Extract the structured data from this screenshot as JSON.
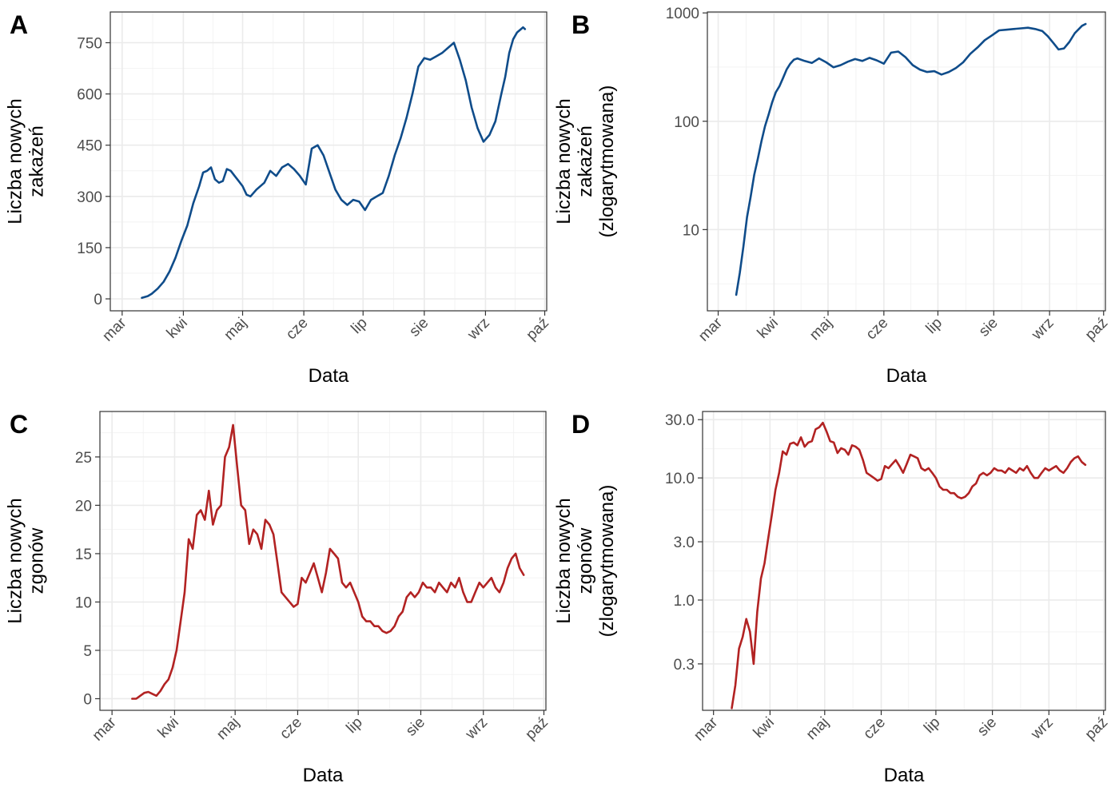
{
  "chart_data": [
    {
      "panel": "A",
      "type": "line",
      "xlabel": "Data",
      "ylabel_lines": [
        "Liczba nowych",
        "zakażeń"
      ],
      "x_tick_labels": [
        "mar",
        "kwi",
        "maj",
        "cze",
        "lip",
        "sie",
        "wrz",
        "paź"
      ],
      "xlim": [
        -6,
        215
      ],
      "ylim": [
        -35,
        840
      ],
      "y_scale": "linear",
      "y_ticks": [
        0,
        150,
        300,
        450,
        600,
        750
      ],
      "y_tick_labels": [
        "0",
        "150",
        "300",
        "450",
        "600",
        "750"
      ],
      "y_minor": [
        75,
        225,
        375,
        525,
        675
      ],
      "color": "#0f4c8a",
      "series": [
        {
          "x": [
            10,
            13,
            15,
            18,
            21,
            24,
            27,
            30,
            33,
            36,
            39,
            41,
            43,
            45,
            47,
            49,
            51,
            53,
            55,
            57,
            59,
            61,
            63,
            65,
            68,
            72,
            75,
            78,
            81,
            84,
            87,
            90,
            93,
            96,
            99,
            102,
            105,
            108,
            111,
            114,
            117,
            120,
            123,
            126,
            129,
            132,
            135,
            138,
            141,
            144,
            147,
            150,
            153,
            156,
            159,
            162,
            165,
            168,
            171,
            174,
            177,
            180,
            183,
            186,
            189,
            192,
            194,
            196,
            198,
            200,
            202,
            203,
            204
          ],
          "y": [
            3,
            8,
            15,
            30,
            50,
            80,
            120,
            170,
            215,
            280,
            330,
            370,
            375,
            385,
            350,
            340,
            345,
            380,
            375,
            360,
            345,
            330,
            305,
            300,
            320,
            340,
            375,
            360,
            385,
            395,
            380,
            360,
            335,
            440,
            450,
            420,
            370,
            320,
            290,
            275,
            290,
            285,
            260,
            290,
            300,
            310,
            360,
            420,
            470,
            530,
            600,
            680,
            705,
            700,
            710,
            720,
            735,
            750,
            700,
            640,
            560,
            500,
            460,
            480,
            520,
            600,
            650,
            720,
            760,
            780,
            790,
            795,
            790
          ]
        }
      ]
    },
    {
      "panel": "B",
      "type": "line",
      "xlabel": "Data",
      "ylabel_lines": [
        "Liczba nowych",
        "zakażeń",
        "(zlogarytmowana)"
      ],
      "x_tick_labels": [
        "mar",
        "kwi",
        "maj",
        "cze",
        "lip",
        "sie",
        "wrz",
        "paź"
      ],
      "xlim": [
        -6,
        215
      ],
      "ylim": [
        1.78,
        1020
      ],
      "y_scale": "log10",
      "y_ticks": [
        10,
        100,
        1000
      ],
      "y_tick_labels": [
        "10",
        "100",
        "1000"
      ],
      "y_minor": [
        3.1623,
        31.623,
        316.23
      ],
      "color": "#0f4c8a",
      "series": [
        {
          "x": [
            10,
            12,
            14,
            16,
            18,
            20,
            22,
            24,
            26,
            28,
            30,
            32,
            34,
            36,
            38,
            40,
            42,
            44,
            48,
            52,
            56,
            60,
            64,
            68,
            72,
            76,
            80,
            84,
            88,
            92,
            96,
            100,
            104,
            108,
            112,
            116,
            120,
            124,
            128,
            132,
            136,
            140,
            144,
            148,
            152,
            156,
            160,
            164,
            168,
            172,
            176,
            180,
            183,
            186,
            189,
            192,
            195,
            198,
            202,
            204
          ],
          "y": [
            2.5,
            4,
            7,
            13,
            20,
            32,
            45,
            65,
            90,
            115,
            150,
            185,
            210,
            250,
            300,
            340,
            370,
            380,
            360,
            345,
            380,
            350,
            315,
            330,
            355,
            375,
            360,
            385,
            365,
            340,
            430,
            440,
            390,
            330,
            300,
            285,
            290,
            270,
            285,
            310,
            350,
            420,
            480,
            560,
            620,
            690,
            700,
            710,
            720,
            730,
            710,
            680,
            610,
            530,
            460,
            470,
            540,
            650,
            760,
            790
          ]
        }
      ]
    },
    {
      "panel": "C",
      "type": "line",
      "xlabel": "Data",
      "ylabel_lines": [
        "Liczba nowych",
        "zgonów"
      ],
      "x_tick_labels": [
        "mar",
        "kwi",
        "maj",
        "cze",
        "lip",
        "sie",
        "wrz",
        "paź"
      ],
      "xlim": [
        -6,
        215
      ],
      "ylim": [
        -1.2,
        29.7
      ],
      "y_scale": "linear",
      "y_ticks": [
        0,
        5,
        10,
        15,
        20,
        25
      ],
      "y_tick_labels": [
        "0",
        "5",
        "10",
        "15",
        "20",
        "25"
      ],
      "y_minor": [
        2.5,
        7.5,
        12.5,
        17.5,
        22.5,
        27.5
      ],
      "color": "#b22222",
      "series": [
        {
          "x": [
            10,
            12,
            14,
            16,
            18,
            20,
            22,
            24,
            26,
            28,
            30,
            32,
            34,
            36,
            38,
            40,
            42,
            44,
            46,
            48,
            50,
            52,
            54,
            56,
            58,
            60,
            62,
            64,
            66,
            68,
            70,
            72,
            74,
            76,
            78,
            80,
            82,
            84,
            86,
            88,
            90,
            92,
            94,
            96,
            98,
            100,
            102,
            104,
            106,
            108,
            110,
            112,
            114,
            116,
            118,
            120,
            122,
            124,
            126,
            128,
            130,
            132,
            134,
            136,
            138,
            140,
            142,
            144,
            146,
            148,
            150,
            152,
            154,
            156,
            158,
            160,
            162,
            164,
            166,
            168,
            170,
            172,
            174,
            176,
            178,
            180,
            182,
            184,
            186,
            188,
            190,
            192,
            194,
            196,
            198,
            200,
            202,
            204
          ],
          "y": [
            0,
            0,
            0.3,
            0.6,
            0.7,
            0.5,
            0.3,
            0.8,
            1.5,
            2.0,
            3.2,
            5.0,
            8.0,
            11.0,
            16.5,
            15.5,
            19.0,
            19.5,
            18.5,
            21.5,
            18.0,
            19.5,
            20.0,
            25.0,
            26.0,
            28.3,
            24.0,
            20.0,
            19.5,
            16.0,
            17.5,
            17.0,
            15.5,
            18.5,
            18.0,
            17.0,
            14.0,
            11.0,
            10.5,
            10.0,
            9.5,
            9.8,
            12.5,
            12.0,
            13.0,
            14.0,
            12.5,
            11.0,
            13.0,
            15.5,
            15.0,
            14.5,
            12.0,
            11.5,
            12.0,
            11.0,
            10.0,
            8.5,
            8.0,
            8.0,
            7.5,
            7.5,
            7.0,
            6.8,
            7.0,
            7.5,
            8.5,
            9.0,
            10.5,
            11.0,
            10.5,
            11.0,
            12.0,
            11.5,
            11.5,
            11.0,
            12.0,
            11.5,
            11.0,
            12.0,
            11.5,
            12.5,
            11.0,
            10.0,
            10.0,
            11.0,
            12.0,
            11.5,
            12.0,
            12.5,
            11.5,
            11.0,
            12.0,
            13.5,
            14.5,
            15.0,
            13.5,
            12.8
          ]
        }
      ]
    },
    {
      "panel": "D",
      "type": "line",
      "xlabel": "Data",
      "ylabel_lines": [
        "Liczba nowych",
        "zgonów",
        "(zlogarytmowana)"
      ],
      "x_tick_labels": [
        "mar",
        "kwi",
        "maj",
        "cze",
        "lip",
        "sie",
        "wrz",
        "paź"
      ],
      "xlim": [
        -6,
        215
      ],
      "ylim": [
        0.125,
        35
      ],
      "y_scale": "log10",
      "y_ticks": [
        0.3,
        1.0,
        3.0,
        10.0,
        30.0
      ],
      "y_tick_labels": [
        "0.3",
        "1.0",
        "3.0",
        "10.0",
        "30.0"
      ],
      "y_minor": [
        0.5477,
        1.7321,
        5.4772,
        17.3205
      ],
      "color": "#b22222",
      "series": [
        {
          "x": [
            10,
            12,
            14,
            16,
            18,
            20,
            22,
            24,
            26,
            28,
            30,
            32,
            34,
            36,
            38,
            40,
            42,
            44,
            46,
            48,
            50,
            52,
            54,
            56,
            58,
            60,
            62,
            64,
            66,
            68,
            70,
            72,
            74,
            76,
            78,
            80,
            82,
            84,
            86,
            88,
            90,
            92,
            94,
            96,
            98,
            100,
            102,
            104,
            106,
            108,
            110,
            112,
            114,
            116,
            118,
            120,
            122,
            124,
            126,
            128,
            130,
            132,
            134,
            136,
            138,
            140,
            142,
            144,
            146,
            148,
            150,
            152,
            154,
            156,
            158,
            160,
            162,
            164,
            166,
            168,
            170,
            172,
            174,
            176,
            178,
            180,
            182,
            184,
            186,
            188,
            190,
            192,
            194,
            196,
            198,
            200,
            202,
            204
          ],
          "y": [
            0.13,
            0.2,
            0.4,
            0.5,
            0.7,
            0.55,
            0.3,
            0.8,
            1.5,
            2.0,
            3.2,
            5.0,
            8.0,
            11.0,
            16.5,
            15.5,
            19.0,
            19.5,
            18.5,
            21.5,
            18.0,
            19.5,
            20.0,
            25.0,
            26.0,
            28.3,
            24.0,
            20.0,
            19.5,
            16.0,
            17.5,
            17.0,
            15.5,
            18.5,
            18.0,
            17.0,
            14.0,
            11.0,
            10.5,
            10.0,
            9.5,
            9.8,
            12.5,
            12.0,
            13.0,
            14.0,
            12.5,
            11.0,
            13.0,
            15.5,
            15.0,
            14.5,
            12.0,
            11.5,
            12.0,
            11.0,
            10.0,
            8.5,
            8.0,
            8.0,
            7.5,
            7.5,
            7.0,
            6.8,
            7.0,
            7.5,
            8.5,
            9.0,
            10.5,
            11.0,
            10.5,
            11.0,
            12.0,
            11.5,
            11.5,
            11.0,
            12.0,
            11.5,
            11.0,
            12.0,
            11.5,
            12.5,
            11.0,
            10.0,
            10.0,
            11.0,
            12.0,
            11.5,
            12.0,
            12.5,
            11.5,
            11.0,
            12.0,
            13.5,
            14.5,
            15.0,
            13.5,
            12.8
          ]
        }
      ]
    }
  ]
}
